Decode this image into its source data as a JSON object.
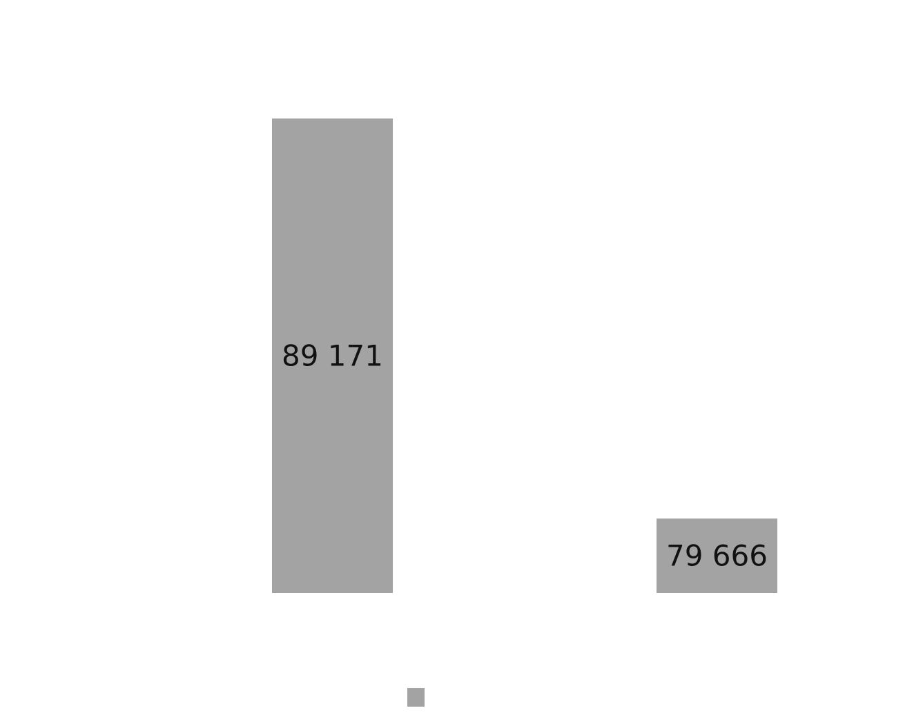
{
  "chart_data": {
    "type": "bar",
    "categories": [
      "",
      ""
    ],
    "series": [
      {
        "values": [
          89171,
          79666
        ],
        "color": "#a3a3a3"
      }
    ],
    "data_labels": [
      "89 171",
      "79 666"
    ],
    "title": "",
    "xlabel": "",
    "ylabel": "",
    "ylim": [
      77900,
      91100
    ],
    "grid": false,
    "legend": {
      "position": "bottom",
      "entries": [
        {
          "label": "",
          "color": "#a3a3a3"
        }
      ]
    }
  }
}
